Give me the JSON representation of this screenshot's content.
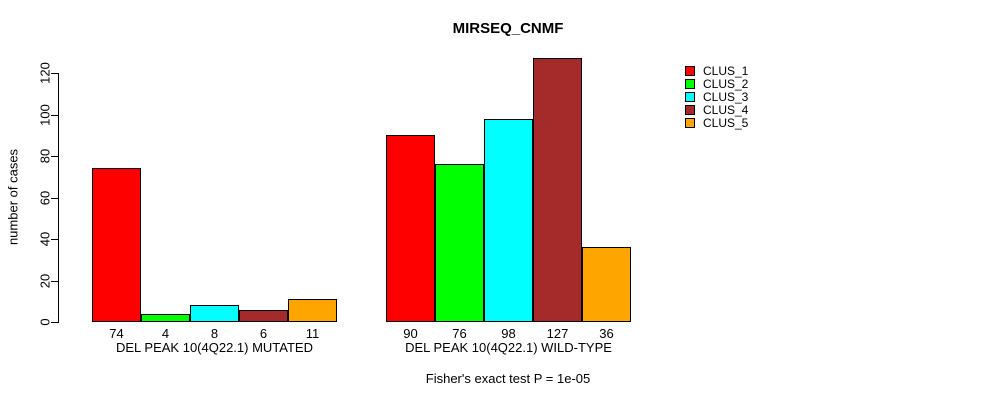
{
  "chart_data": {
    "type": "bar",
    "title": "MIRSEQ_CNMF",
    "ylabel": "number of cases",
    "xlabel": "",
    "ylim": [
      0,
      120
    ],
    "yticks": [
      0,
      20,
      40,
      60,
      80,
      100,
      120
    ],
    "grid": false,
    "legend_position": "top-right",
    "bar_border_color": "#000000",
    "background_color": "#FFFFFF",
    "categories": [
      "DEL PEAK 10(4Q22.1) MUTATED",
      "DEL PEAK 10(4Q22.1) WILD-TYPE"
    ],
    "series": [
      {
        "name": "CLUS_1",
        "color": "#FF0000",
        "values": [
          74,
          90
        ]
      },
      {
        "name": "CLUS_2",
        "color": "#00FF00",
        "values": [
          4,
          76
        ]
      },
      {
        "name": "CLUS_3",
        "color": "#00FFFF",
        "values": [
          8,
          98
        ]
      },
      {
        "name": "CLUS_4",
        "color": "#A52A2A",
        "values": [
          6,
          127
        ]
      },
      {
        "name": "CLUS_5",
        "color": "#FFA500",
        "values": [
          11,
          36
        ]
      }
    ],
    "value_labels_shown": true,
    "annotation": "Fisher's exact test P = 1e-05"
  }
}
